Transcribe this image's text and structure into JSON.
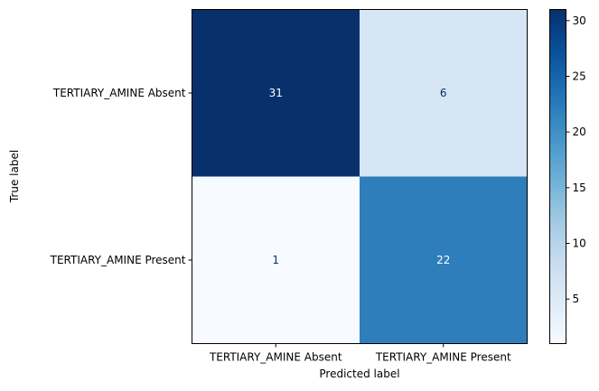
{
  "chart_data": {
    "type": "heatmap",
    "title": "",
    "xlabel": "Predicted label",
    "ylabel": "True label",
    "x_categories": [
      "TERTIARY_AMINE Absent",
      "TERTIARY_AMINE Present"
    ],
    "y_categories": [
      "TERTIARY_AMINE Absent",
      "TERTIARY_AMINE Present"
    ],
    "matrix": [
      [
        31,
        6
      ],
      [
        1,
        22
      ]
    ],
    "colormap": "Blues",
    "colorbar": {
      "min": 1,
      "max": 31,
      "ticks": [
        5,
        10,
        15,
        20,
        25,
        30
      ]
    },
    "text_colors": {
      "on_dark": "#ffffff",
      "on_light": "#08306b"
    }
  }
}
